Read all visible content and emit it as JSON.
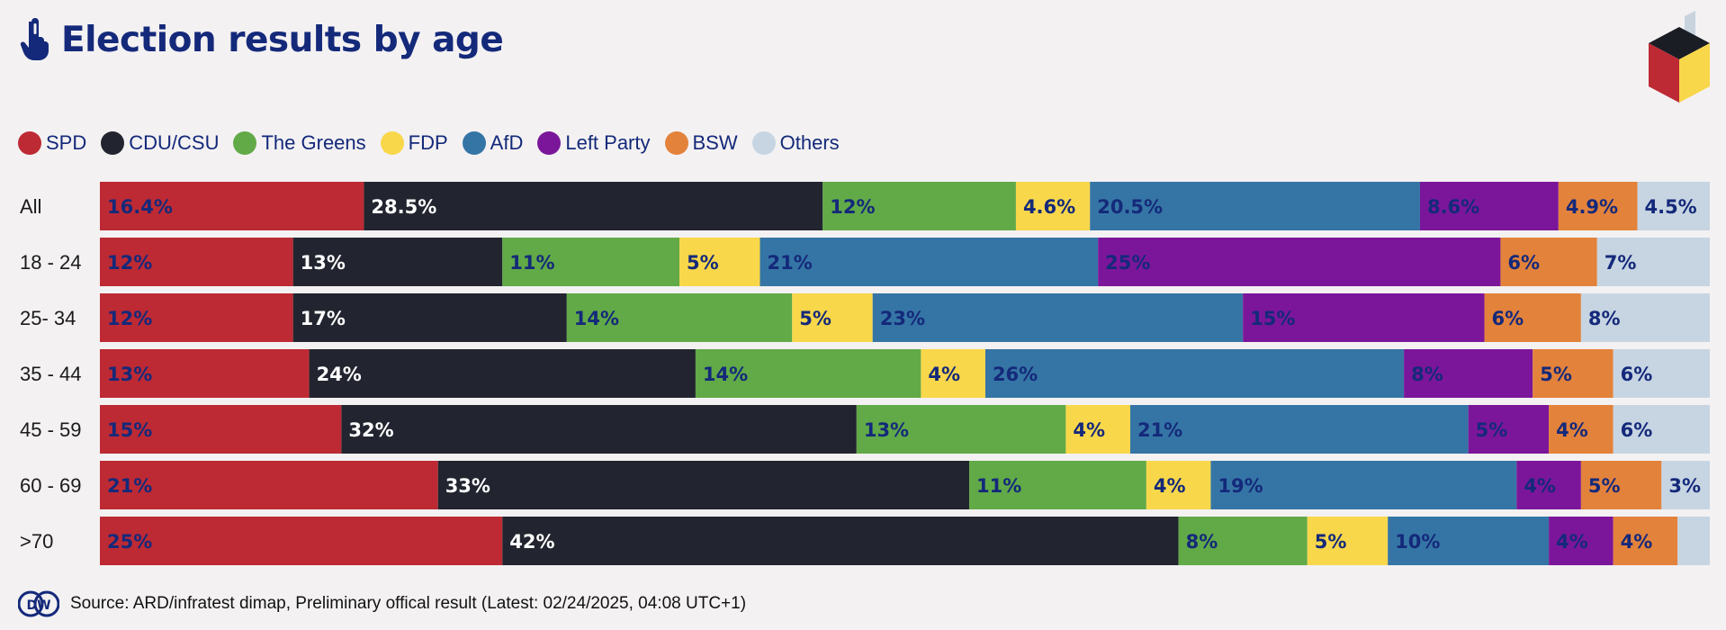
{
  "header": {
    "title": "Election results by age",
    "icon": "hand-pointer-icon"
  },
  "logo": {
    "icon": "ballot-box-icon"
  },
  "legend": [
    {
      "name": "SPD",
      "color": "#bd2a34"
    },
    {
      "name": "CDU/CSU",
      "color": "#22252f"
    },
    {
      "name": "The Greens",
      "color": "#61aa47"
    },
    {
      "name": "FDP",
      "color": "#f8d74a"
    },
    {
      "name": "AfD",
      "color": "#3575a5"
    },
    {
      "name": "Left Party",
      "color": "#7b169a"
    },
    {
      "name": "BSW",
      "color": "#e3823b"
    },
    {
      "name": "Others",
      "color": "#c7d5e2"
    }
  ],
  "chart_data": {
    "type": "bar",
    "orientation": "horizontal",
    "stacked": true,
    "title": "Election results by age",
    "categories": [
      "All",
      "18 - 24",
      "25- 34",
      "35 - 44",
      "45 - 59",
      "60 - 69",
      ">70"
    ],
    "series": [
      {
        "name": "SPD",
        "values": [
          16.4,
          12,
          12,
          13,
          15,
          21,
          25
        ],
        "labels": [
          "16.4%",
          "12%",
          "12%",
          "13%",
          "15%",
          "21%",
          "25%"
        ]
      },
      {
        "name": "CDU/CSU",
        "values": [
          28.5,
          13,
          17,
          24,
          32,
          33,
          42
        ],
        "labels": [
          "28.5%",
          "13%",
          "17%",
          "24%",
          "32%",
          "33%",
          "42%"
        ]
      },
      {
        "name": "The Greens",
        "values": [
          12,
          11,
          14,
          14,
          13,
          11,
          8
        ],
        "labels": [
          "12%",
          "11%",
          "14%",
          "14%",
          "13%",
          "11%",
          "8%"
        ]
      },
      {
        "name": "FDP",
        "values": [
          4.6,
          5,
          5,
          4,
          4,
          4,
          5
        ],
        "labels": [
          "4.6%",
          "5%",
          "5%",
          "4%",
          "4%",
          "4%",
          "5%"
        ]
      },
      {
        "name": "AfD",
        "values": [
          20.5,
          21,
          23,
          26,
          21,
          19,
          10
        ],
        "labels": [
          "20.5%",
          "21%",
          "23%",
          "26%",
          "21%",
          "19%",
          "10%"
        ]
      },
      {
        "name": "Left Party",
        "values": [
          8.6,
          25,
          15,
          8,
          5,
          4,
          4
        ],
        "labels": [
          "8.6%",
          "25%",
          "15%",
          "8%",
          "5%",
          "4%",
          "4%"
        ]
      },
      {
        "name": "BSW",
        "values": [
          4.9,
          6,
          6,
          5,
          4,
          5,
          4
        ],
        "labels": [
          "4.9%",
          "6%",
          "6%",
          "5%",
          "4%",
          "5%",
          "4%"
        ]
      },
      {
        "name": "Others",
        "values": [
          4.5,
          7,
          8,
          6,
          6,
          3,
          2
        ],
        "labels": [
          "4.5%",
          "7%",
          "8%",
          "6%",
          "6%",
          "3%",
          ""
        ]
      }
    ],
    "xlim": [
      0,
      100
    ],
    "grid": false,
    "legend_position": "top-left"
  },
  "footer": {
    "source": "Source: ARD/infratest dimap, Preliminary offical result (Latest: 02/24/2025, 04:08 UTC+1)",
    "logo_text": "DW"
  }
}
